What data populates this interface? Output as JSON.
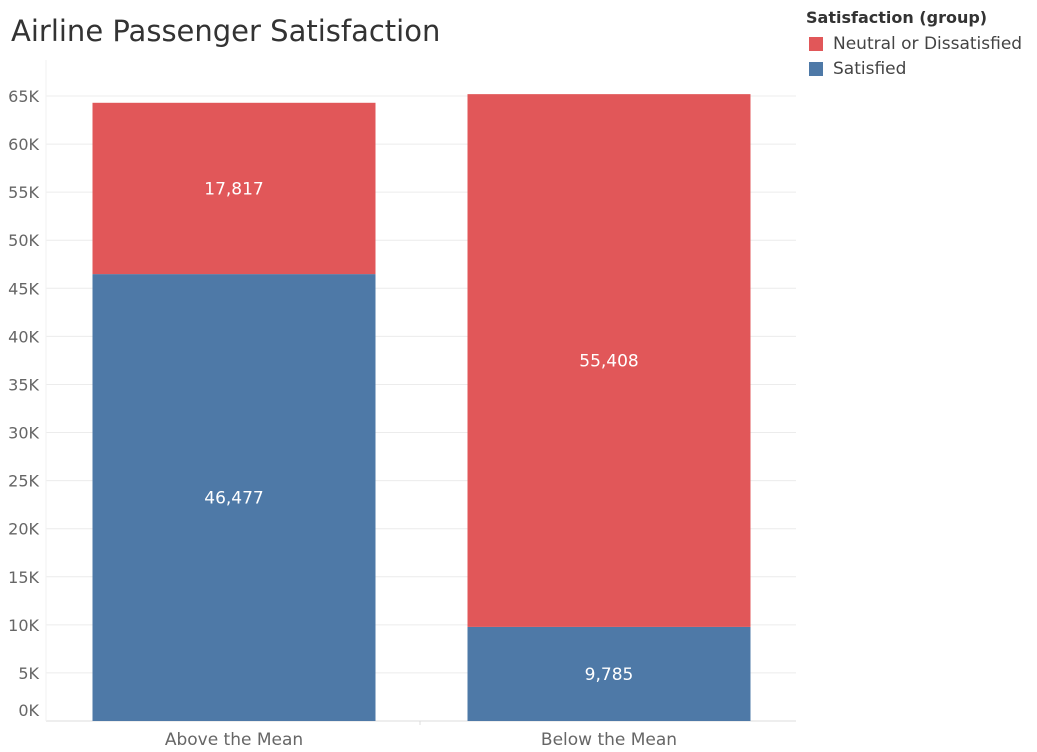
{
  "chart_data": {
    "type": "bar",
    "stacked": true,
    "title": "Airline Passenger Satisfaction",
    "categories": [
      "Above the Mean",
      "Below the Mean"
    ],
    "series": [
      {
        "name": "Satisfied",
        "values": [
          46477,
          9785
        ],
        "labels": [
          "46,477",
          "9,785"
        ],
        "color": "#4e79a7"
      },
      {
        "name": "Neutral or Dissatisfied",
        "values": [
          17817,
          55408
        ],
        "labels": [
          "17,817",
          "55,408"
        ],
        "color": "#e15759"
      }
    ],
    "legend": {
      "title": "Satisfaction (group)",
      "placement": "top-right"
    },
    "ylim": [
      0,
      65000
    ],
    "yticks": [
      0,
      5000,
      10000,
      15000,
      20000,
      25000,
      30000,
      35000,
      40000,
      45000,
      50000,
      55000,
      60000,
      65000
    ],
    "ytick_labels": [
      "0K",
      "5K",
      "10K",
      "15K",
      "20K",
      "25K",
      "30K",
      "35K",
      "40K",
      "45K",
      "50K",
      "55K",
      "60K",
      "65K"
    ],
    "grid": true
  }
}
